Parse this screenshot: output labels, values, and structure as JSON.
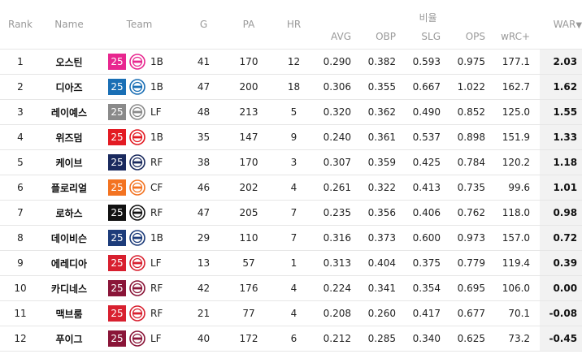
{
  "headers": {
    "rank": "Rank",
    "name": "Name",
    "team": "Team",
    "g": "G",
    "pa": "PA",
    "hr": "HR",
    "group_rates": "비율",
    "avg": "AVG",
    "obp": "OBP",
    "slg": "SLG",
    "ops": "OPS",
    "wrc": "wRC+",
    "war": "WAR",
    "sort_icon": "▼"
  },
  "rows": [
    {
      "rank": "1",
      "name": "오스틴",
      "badge": "25",
      "badge_color": "#e8278f",
      "logo": "twins-logo",
      "pos": "1B",
      "g": "41",
      "pa": "170",
      "hr": "12",
      "avg": "0.290",
      "obp": "0.382",
      "slg": "0.593",
      "ops": "0.975",
      "wrc": "177.1",
      "war": "2.03"
    },
    {
      "rank": "2",
      "name": "디아즈",
      "badge": "25",
      "badge_color": "#1a6fb5",
      "logo": "lions-logo",
      "pos": "1B",
      "g": "47",
      "pa": "200",
      "hr": "18",
      "avg": "0.306",
      "obp": "0.355",
      "slg": "0.667",
      "ops": "1.022",
      "wrc": "162.7",
      "war": "1.62"
    },
    {
      "rank": "3",
      "name": "레이예스",
      "badge": "25",
      "badge_color": "#8a8a8a",
      "logo": "giants-logo",
      "pos": "LF",
      "g": "48",
      "pa": "213",
      "hr": "5",
      "avg": "0.320",
      "obp": "0.362",
      "slg": "0.490",
      "ops": "0.852",
      "wrc": "125.0",
      "war": "1.55"
    },
    {
      "rank": "4",
      "name": "위즈덤",
      "badge": "25",
      "badge_color": "#e31b23",
      "logo": "tigers-logo",
      "pos": "1B",
      "g": "35",
      "pa": "147",
      "hr": "9",
      "avg": "0.240",
      "obp": "0.361",
      "slg": "0.537",
      "ops": "0.898",
      "wrc": "151.9",
      "war": "1.33"
    },
    {
      "rank": "5",
      "name": "케이브",
      "badge": "25",
      "badge_color": "#1a2a5e",
      "logo": "bears-logo",
      "pos": "RF",
      "g": "38",
      "pa": "170",
      "hr": "3",
      "avg": "0.307",
      "obp": "0.359",
      "slg": "0.425",
      "ops": "0.784",
      "wrc": "120.2",
      "war": "1.18"
    },
    {
      "rank": "6",
      "name": "플로리얼",
      "badge": "25",
      "badge_color": "#f37321",
      "logo": "eagles-logo",
      "pos": "CF",
      "g": "46",
      "pa": "202",
      "hr": "4",
      "avg": "0.261",
      "obp": "0.322",
      "slg": "0.413",
      "ops": "0.735",
      "wrc": "99.6",
      "war": "1.01"
    },
    {
      "rank": "7",
      "name": "로하스",
      "badge": "25",
      "badge_color": "#111111",
      "logo": "wiz-logo",
      "pos": "RF",
      "g": "47",
      "pa": "205",
      "hr": "7",
      "avg": "0.235",
      "obp": "0.356",
      "slg": "0.406",
      "ops": "0.762",
      "wrc": "118.0",
      "war": "0.98"
    },
    {
      "rank": "8",
      "name": "데이비슨",
      "badge": "25",
      "badge_color": "#1d3c7a",
      "logo": "dinos-logo",
      "pos": "1B",
      "g": "29",
      "pa": "110",
      "hr": "7",
      "avg": "0.316",
      "obp": "0.373",
      "slg": "0.600",
      "ops": "0.973",
      "wrc": "157.0",
      "war": "0.72"
    },
    {
      "rank": "9",
      "name": "에레디아",
      "badge": "25",
      "badge_color": "#d8202f",
      "logo": "landers-logo",
      "pos": "LF",
      "g": "13",
      "pa": "57",
      "hr": "1",
      "avg": "0.313",
      "obp": "0.404",
      "slg": "0.375",
      "ops": "0.779",
      "wrc": "119.4",
      "war": "0.39"
    },
    {
      "rank": "10",
      "name": "카디네스",
      "badge": "25",
      "badge_color": "#8a1538",
      "logo": "heroes-logo",
      "pos": "RF",
      "g": "42",
      "pa": "176",
      "hr": "4",
      "avg": "0.224",
      "obp": "0.341",
      "slg": "0.354",
      "ops": "0.695",
      "wrc": "106.0",
      "war": "0.00"
    },
    {
      "rank": "11",
      "name": "맥브룸",
      "badge": "25",
      "badge_color": "#d8202f",
      "logo": "landers-logo",
      "pos": "RF",
      "g": "21",
      "pa": "77",
      "hr": "4",
      "avg": "0.208",
      "obp": "0.260",
      "slg": "0.417",
      "ops": "0.677",
      "wrc": "70.1",
      "war": "-0.08"
    },
    {
      "rank": "12",
      "name": "푸이그",
      "badge": "25",
      "badge_color": "#8a1538",
      "logo": "heroes-logo",
      "pos": "LF",
      "g": "40",
      "pa": "172",
      "hr": "6",
      "avg": "0.212",
      "obp": "0.285",
      "slg": "0.340",
      "ops": "0.625",
      "wrc": "73.2",
      "war": "-0.45"
    }
  ]
}
